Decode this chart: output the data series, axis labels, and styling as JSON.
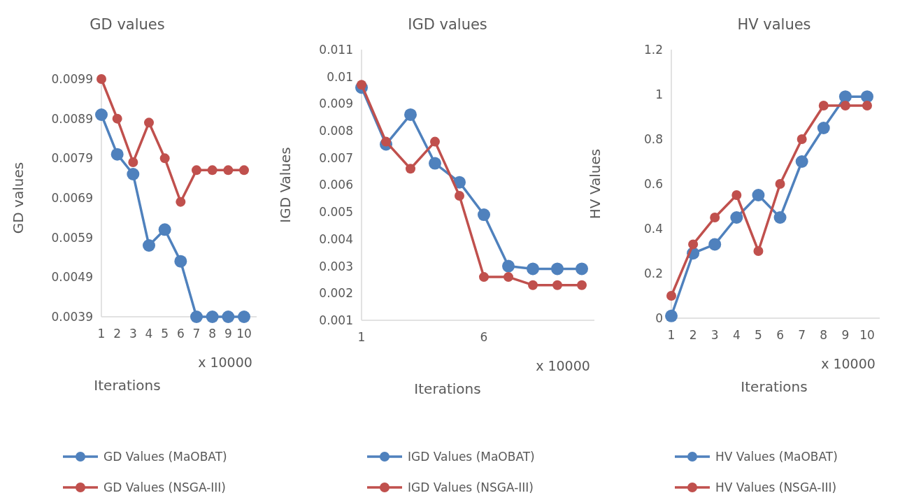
{
  "chart_data": [
    {
      "type": "line",
      "title": "GD values",
      "xlabel": "Iterations",
      "ylabel": "GD values",
      "annotations": [
        "x 10000"
      ],
      "categories": [
        "1",
        "2",
        "3",
        "4",
        "5",
        "6",
        "7",
        "8",
        "9",
        "10"
      ],
      "ylim": [
        0.0039,
        0.0099
      ],
      "yticks": [
        0.0039,
        0.0049,
        0.0059,
        0.0069,
        0.0079,
        0.0089,
        0.0099
      ],
      "marker": "circle",
      "legend": "bottom",
      "series": [
        {
          "name": "GD Values (MaOBAT)",
          "color": "#4f81bd",
          "values": [
            0.009,
            0.008,
            0.0075,
            0.0057,
            0.0061,
            0.0053,
            0.0039,
            0.0039,
            0.0039,
            0.0039
          ]
        },
        {
          "name": "GD Values (NSGA-III)",
          "color": "#c0504d",
          "values": [
            0.0099,
            0.0089,
            0.0078,
            0.0088,
            0.0079,
            0.0068,
            0.0076,
            0.0076,
            0.0076,
            0.0076
          ]
        }
      ]
    },
    {
      "type": "line",
      "title": "IGD values",
      "xlabel": "Iterations",
      "ylabel": "IGD Values",
      "annotations": [
        "x 10000"
      ],
      "categories": [
        "1",
        null,
        null,
        null,
        null,
        "6",
        null,
        null,
        null,
        null
      ],
      "ylim": [
        0.001,
        0.011
      ],
      "yticks": [
        0.001,
        0.002,
        0.003,
        0.004,
        0.005,
        0.006,
        0.007,
        0.008,
        0.009,
        0.01,
        0.011
      ],
      "marker": "circle",
      "legend": "bottom",
      "series": [
        {
          "name": "IGD Values (MaOBAT)",
          "color": "#4f81bd",
          "values": [
            0.0096,
            0.0075,
            0.0086,
            0.0068,
            0.0061,
            0.0049,
            0.003,
            0.0029,
            0.0029,
            0.0029
          ]
        },
        {
          "name": "IGD Values (NSGA-III)",
          "color": "#c0504d",
          "values": [
            0.0097,
            0.0076,
            0.0066,
            0.0076,
            0.0056,
            0.0026,
            0.0026,
            0.0023,
            0.0023,
            0.0023
          ]
        }
      ]
    },
    {
      "type": "line",
      "title": "HV values",
      "xlabel": "Iterations",
      "ylabel": "HV Values",
      "annotations": [
        "x 10000"
      ],
      "categories": [
        "1",
        "2",
        "3",
        "4",
        "5",
        "6",
        "7",
        "8",
        "9",
        "10"
      ],
      "ylim": [
        0,
        1.2
      ],
      "yticks": [
        0,
        0.2,
        0.4,
        0.6,
        0.8,
        1,
        1.2
      ],
      "marker": "circle",
      "legend": "bottom",
      "series": [
        {
          "name": "HV Values (MaOBAT)",
          "color": "#4f81bd",
          "values": [
            0.01,
            0.29,
            0.33,
            0.45,
            0.55,
            0.45,
            0.7,
            0.85,
            0.99,
            0.99
          ]
        },
        {
          "name": "HV Values (NSGA-III)",
          "color": "#c0504d",
          "values": [
            0.1,
            0.33,
            0.45,
            0.55,
            0.3,
            0.6,
            0.8,
            0.95,
            0.95,
            0.95
          ]
        }
      ]
    }
  ]
}
